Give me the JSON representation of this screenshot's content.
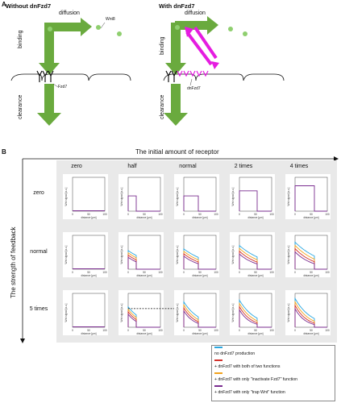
{
  "panel_a": {
    "letter": "A",
    "left_title": "Without dnFzd7",
    "right_title": "With dnFzd7",
    "diffusion_label": "diffusion",
    "binding_label": "binding",
    "clearance_label": "clearance",
    "wnt_label": "Wnt8",
    "fzd7_label": "Fzd7",
    "dnfzd7_label": "dnFzd7",
    "colors": {
      "arrow": "#6aaa3e",
      "magenta": "#e51ce0",
      "ligand": "#8fcf6f"
    }
  },
  "panel_b": {
    "letter": "B",
    "x_axis_title": "The initial amount of receptor",
    "y_axis_title": "The strength of feedback",
    "columns": [
      "zero",
      "half",
      "normal",
      "2 times",
      "4 times"
    ],
    "rows": [
      "zero",
      "normal",
      "5 times"
    ],
    "cell_xlabel": "distance [μm]",
    "cell_ylabel": "Wnt signal [a.u.]",
    "tick_labels": [
      "0",
      "50",
      "100"
    ]
  },
  "legend": {
    "items": [
      {
        "label": "no dnFzd7 production",
        "color": "#2aa7e0"
      },
      {
        "label": "+ dnFzd7 with both of two functions",
        "color": "#d2312b"
      },
      {
        "label": "+ dnFzd7 with only \"inactivate Fzd7\" function",
        "color": "#f2a21c"
      },
      {
        "label": "+ dnFzd7 with only \"trap Wnt\" function",
        "color": "#7a2c8f"
      }
    ]
  }
}
